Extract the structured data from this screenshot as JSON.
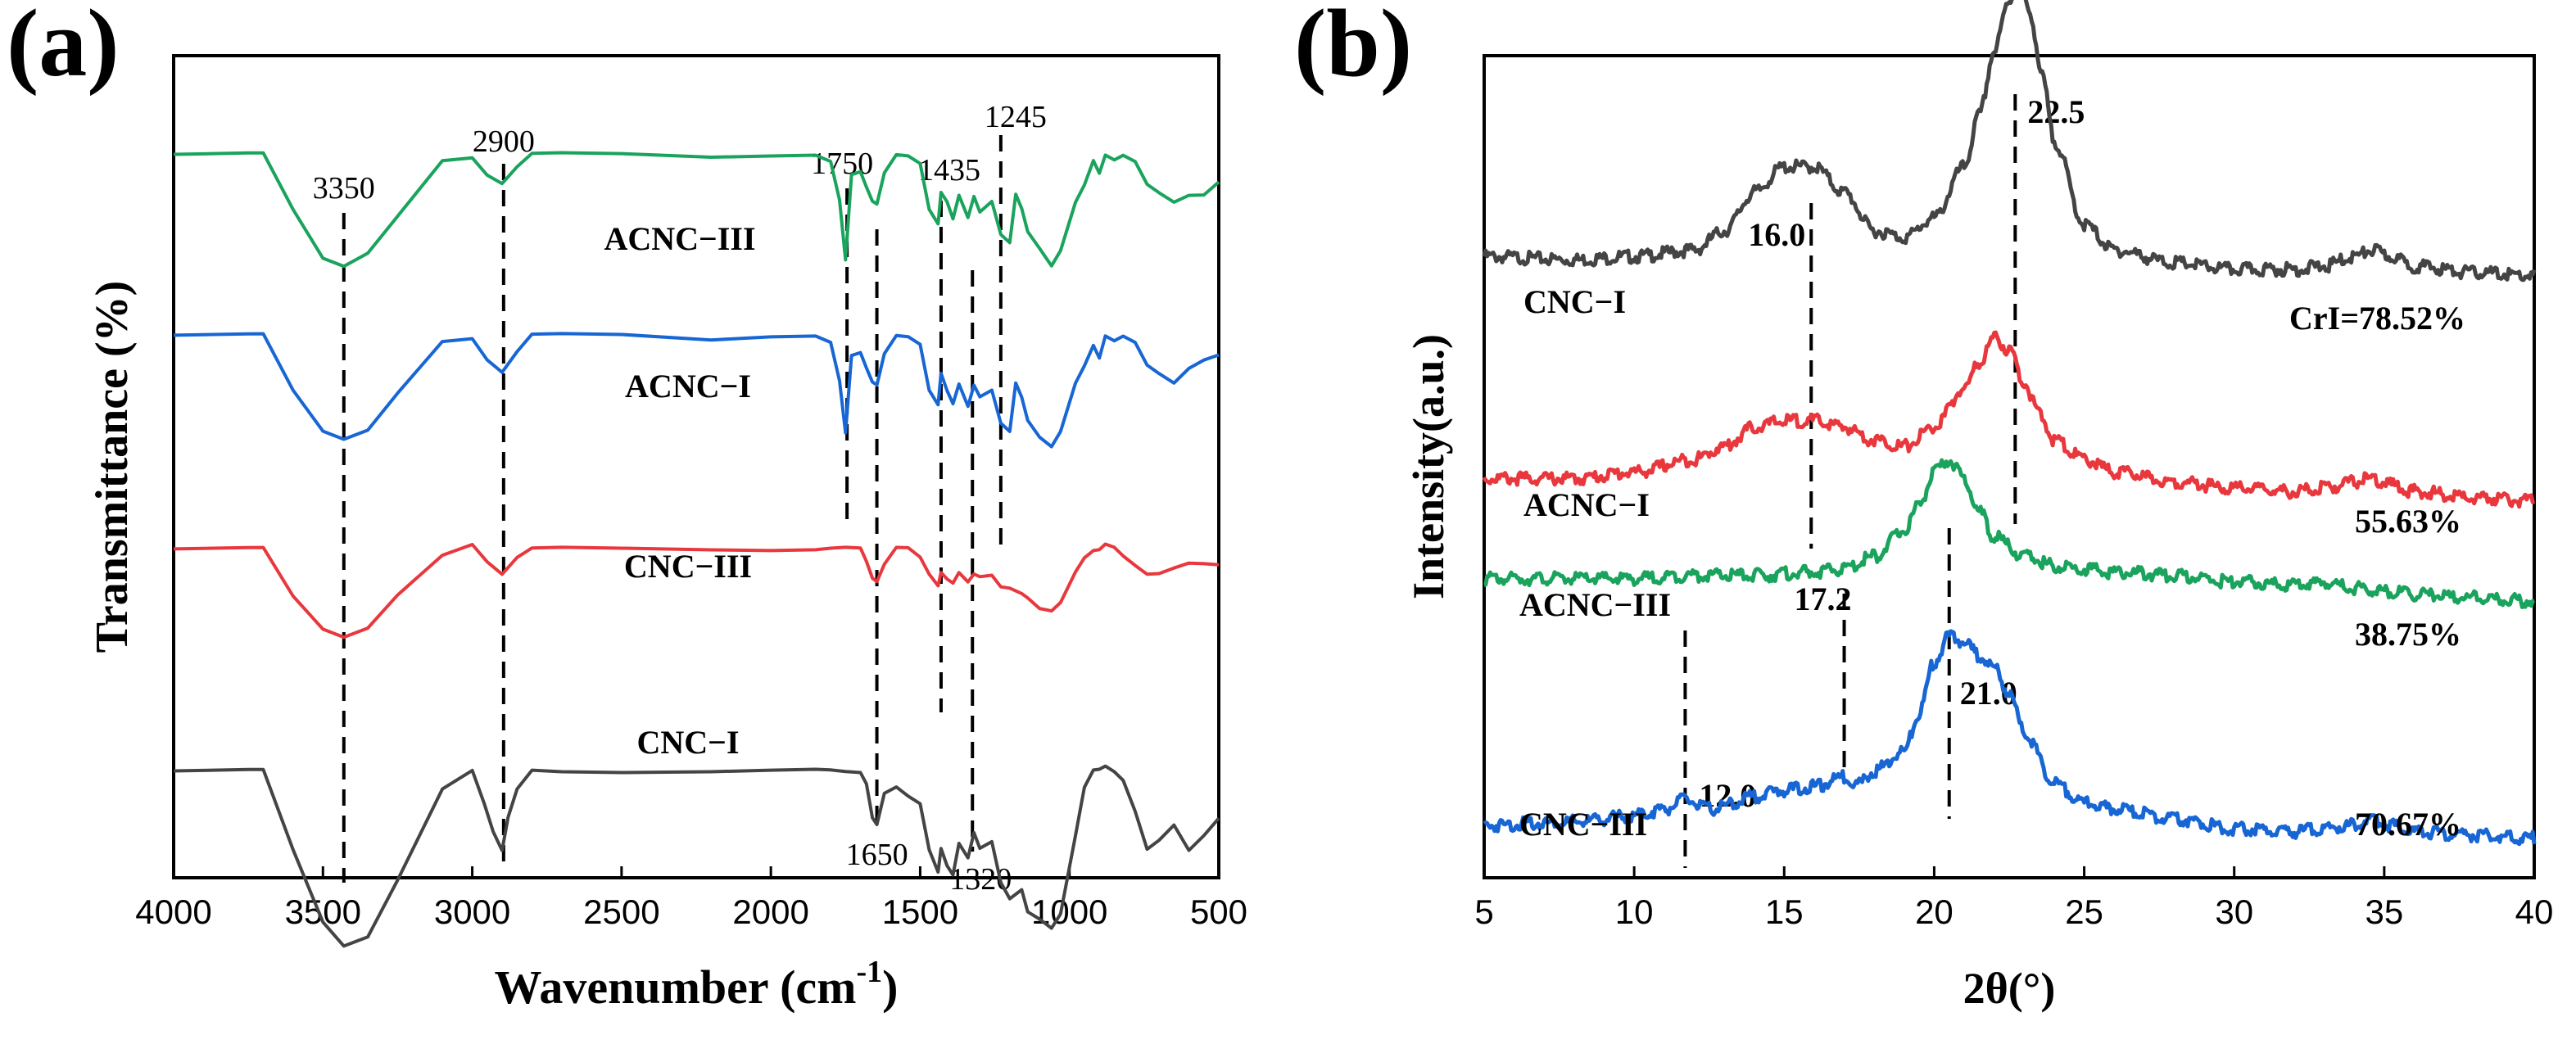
{
  "chart_data": [
    {
      "type": "line",
      "panel_label": "(a)",
      "xlabel": "Wavenumber (cm",
      "xlabel_sup": "-1",
      "xlabel_close": ")",
      "ylabel": "Transmittance (%)",
      "xlim": [
        4000,
        500
      ],
      "xticks": [
        "4000",
        "3500",
        "3000",
        "2500",
        "2000",
        "1500",
        "1000",
        "500"
      ],
      "peaks": [
        {
          "label": "3350",
          "x": 3430
        },
        {
          "label": "2900",
          "x": 2895
        },
        {
          "label": "1750",
          "x": 1745
        },
        {
          "label": "1650",
          "x": 1645
        },
        {
          "label": "1435",
          "x": 1430
        },
        {
          "label": "1320",
          "x": 1325
        },
        {
          "label": "1245",
          "x": 1230
        }
      ],
      "series": [
        {
          "name": "ACNC−III",
          "color": "#1aa35c",
          "offset": 0.88,
          "x": [
            4000,
            3750,
            3700,
            3600,
            3500,
            3430,
            3350,
            3250,
            3100,
            3000,
            2950,
            2900,
            2850,
            2800,
            2700,
            2500,
            2200,
            2000,
            1850,
            1800,
            1770,
            1750,
            1730,
            1700,
            1680,
            1660,
            1645,
            1620,
            1580,
            1540,
            1500,
            1470,
            1440,
            1430,
            1410,
            1390,
            1370,
            1340,
            1320,
            1300,
            1260,
            1230,
            1200,
            1180,
            1160,
            1140,
            1100,
            1060,
            1030,
            980,
            950,
            920,
            900,
            880,
            850,
            820,
            780,
            740,
            700,
            650,
            600,
            550,
            500
          ],
          "y": [
            0,
            0,
            0,
            -0.14,
            -0.26,
            -0.28,
            -0.25,
            -0.16,
            -0.02,
            -0.01,
            -0.05,
            -0.07,
            -0.03,
            0,
            0,
            0,
            -0.005,
            0,
            0,
            -0.02,
            -0.12,
            -0.27,
            -0.05,
            -0.04,
            -0.08,
            -0.12,
            -0.13,
            -0.05,
            0,
            0,
            -0.02,
            -0.14,
            -0.18,
            -0.1,
            -0.12,
            -0.16,
            -0.1,
            -0.16,
            -0.11,
            -0.15,
            -0.12,
            -0.2,
            -0.22,
            -0.1,
            -0.14,
            -0.2,
            -0.24,
            -0.28,
            -0.24,
            -0.12,
            -0.08,
            -0.02,
            -0.05,
            0,
            -0.01,
            0,
            -0.02,
            -0.08,
            -0.1,
            -0.12,
            -0.1,
            -0.1,
            -0.07
          ]
        },
        {
          "name": "ACNC−I",
          "color": "#1766d4",
          "offset": 0.66,
          "x": [
            4000,
            3750,
            3700,
            3600,
            3500,
            3430,
            3350,
            3250,
            3100,
            3000,
            2950,
            2900,
            2850,
            2800,
            2700,
            2500,
            2200,
            2000,
            1850,
            1800,
            1770,
            1750,
            1730,
            1700,
            1680,
            1660,
            1645,
            1620,
            1580,
            1540,
            1500,
            1470,
            1440,
            1430,
            1410,
            1390,
            1370,
            1340,
            1320,
            1300,
            1260,
            1230,
            1200,
            1180,
            1160,
            1140,
            1100,
            1060,
            1030,
            980,
            950,
            920,
            900,
            880,
            850,
            820,
            780,
            740,
            700,
            650,
            600,
            550,
            500
          ],
          "y": [
            0,
            0,
            0,
            -0.14,
            -0.24,
            -0.26,
            -0.24,
            -0.15,
            -0.02,
            -0.01,
            -0.06,
            -0.09,
            -0.04,
            0,
            0,
            0,
            -0.01,
            0,
            0,
            -0.02,
            -0.12,
            -0.25,
            -0.05,
            -0.04,
            -0.08,
            -0.12,
            -0.13,
            -0.05,
            0,
            0,
            -0.02,
            -0.14,
            -0.18,
            -0.1,
            -0.14,
            -0.17,
            -0.12,
            -0.18,
            -0.13,
            -0.16,
            -0.14,
            -0.22,
            -0.24,
            -0.12,
            -0.16,
            -0.22,
            -0.26,
            -0.28,
            -0.24,
            -0.12,
            -0.08,
            -0.03,
            -0.06,
            0,
            -0.01,
            0,
            -0.02,
            -0.08,
            -0.1,
            -0.12,
            -0.08,
            -0.06,
            -0.05
          ]
        },
        {
          "name": "CNC−III",
          "color": "#e8383d",
          "offset": 0.4,
          "x": [
            4000,
            3750,
            3700,
            3600,
            3500,
            3430,
            3350,
            3250,
            3100,
            3000,
            2950,
            2900,
            2850,
            2800,
            2700,
            2500,
            2200,
            2000,
            1850,
            1800,
            1750,
            1700,
            1680,
            1660,
            1645,
            1620,
            1580,
            1540,
            1500,
            1470,
            1440,
            1430,
            1410,
            1390,
            1370,
            1340,
            1320,
            1300,
            1260,
            1230,
            1200,
            1160,
            1140,
            1100,
            1060,
            1030,
            980,
            950,
            920,
            900,
            880,
            850,
            820,
            780,
            740,
            700,
            650,
            600,
            550,
            500
          ],
          "y": [
            0,
            0,
            0,
            -0.12,
            -0.2,
            -0.22,
            -0.2,
            -0.12,
            -0.02,
            0.01,
            -0.03,
            -0.06,
            -0.02,
            0,
            0,
            0,
            0,
            0,
            0,
            0,
            0,
            0,
            -0.03,
            -0.07,
            -0.08,
            -0.04,
            0,
            0,
            -0.02,
            -0.06,
            -0.09,
            -0.06,
            -0.08,
            -0.09,
            -0.06,
            -0.08,
            -0.06,
            -0.07,
            -0.07,
            -0.1,
            -0.1,
            -0.11,
            -0.12,
            -0.15,
            -0.16,
            -0.14,
            -0.06,
            -0.02,
            0,
            0,
            0.01,
            0,
            -0.02,
            -0.04,
            -0.06,
            -0.06,
            -0.05,
            -0.04,
            -0.04,
            -0.04
          ]
        },
        {
          "name": "CNC−I",
          "color": "#444444",
          "offset": 0.13,
          "x": [
            4000,
            3750,
            3700,
            3600,
            3500,
            3430,
            3350,
            3250,
            3100,
            3000,
            2960,
            2930,
            2900,
            2880,
            2850,
            2800,
            2700,
            2500,
            2200,
            2000,
            1850,
            1800,
            1750,
            1700,
            1680,
            1660,
            1645,
            1620,
            1580,
            1540,
            1500,
            1470,
            1440,
            1430,
            1410,
            1390,
            1370,
            1340,
            1320,
            1300,
            1260,
            1230,
            1200,
            1160,
            1140,
            1100,
            1060,
            1030,
            980,
            950,
            920,
            900,
            880,
            850,
            820,
            780,
            740,
            700,
            650,
            600,
            550,
            500
          ],
          "y": [
            0,
            0,
            0,
            -0.2,
            -0.38,
            -0.44,
            -0.42,
            -0.28,
            -0.05,
            0,
            -0.08,
            -0.15,
            -0.2,
            -0.12,
            -0.05,
            0,
            0,
            0,
            0,
            0,
            0,
            0,
            0,
            0,
            -0.03,
            -0.12,
            -0.14,
            -0.06,
            -0.04,
            -0.06,
            -0.08,
            -0.2,
            -0.26,
            -0.2,
            -0.24,
            -0.26,
            -0.18,
            -0.22,
            -0.16,
            -0.2,
            -0.18,
            -0.28,
            -0.32,
            -0.3,
            -0.36,
            -0.38,
            -0.4,
            -0.36,
            -0.16,
            -0.04,
            0,
            0,
            0.01,
            0,
            -0.02,
            -0.1,
            -0.2,
            -0.18,
            -0.14,
            -0.2,
            -0.16,
            -0.12
          ]
        }
      ]
    },
    {
      "type": "line",
      "panel_label": "(b)",
      "xlabel": "2θ(°)",
      "ylabel": "Intensity(a.u.)",
      "xlim": [
        5,
        40
      ],
      "xticks": [
        "5",
        "10",
        "15",
        "20",
        "25",
        "30",
        "35",
        "40"
      ],
      "peaks": [
        {
          "label": "16.0",
          "x": 15.9
        },
        {
          "label": "22.5",
          "x": 22.7
        },
        {
          "label": "17.2",
          "x": 17.0
        },
        {
          "label": "21.0",
          "x": 20.5
        },
        {
          "label": "12.0",
          "x": 11.7
        }
      ],
      "series": [
        {
          "name": "CNC−I",
          "color": "#444444",
          "crI": "CrI=78.52%",
          "offset": 0.74,
          "x": [
            5,
            8,
            10,
            12,
            13,
            14,
            15,
            16,
            17,
            18,
            19,
            20,
            21,
            21.5,
            22,
            22.5,
            22.8,
            23.2,
            23.6,
            24,
            25,
            26,
            28,
            30,
            32,
            33,
            34,
            34.6,
            35.2,
            36,
            38,
            40
          ],
          "y": [
            0.02,
            0.015,
            0.02,
            0.03,
            0.06,
            0.12,
            0.16,
            0.16,
            0.12,
            0.06,
            0.05,
            0.08,
            0.16,
            0.24,
            0.34,
            0.42,
            0.44,
            0.4,
            0.3,
            0.2,
            0.07,
            0.03,
            0.01,
            0,
            0,
            0.005,
            0.02,
            0.03,
            0.02,
            0.005,
            -0.005,
            -0.01
          ]
        },
        {
          "name": "ACNC−I",
          "color": "#e8383d",
          "crI": "55.63%",
          "offset": 0.47,
          "x": [
            5,
            8,
            10,
            12,
            13,
            14,
            15,
            16,
            17,
            18,
            19,
            20,
            21,
            21.5,
            22,
            22.5,
            23,
            23.5,
            24,
            25,
            26,
            28,
            30,
            32,
            33,
            34,
            34.6,
            35.2,
            36,
            38,
            40
          ],
          "y": [
            0.02,
            0.02,
            0.03,
            0.05,
            0.07,
            0.1,
            0.11,
            0.11,
            0.1,
            0.08,
            0.07,
            0.1,
            0.16,
            0.2,
            0.24,
            0.22,
            0.17,
            0.12,
            0.08,
            0.05,
            0.03,
            0.015,
            0.005,
            0,
            0.005,
            0.015,
            0.02,
            0.01,
            0,
            -0.01,
            -0.015
          ]
        },
        {
          "name": "ACNC−III",
          "color": "#1aa35c",
          "crI": "38.75%",
          "offset": 0.36,
          "x": [
            5,
            8,
            10,
            12,
            14,
            16,
            17,
            18,
            19,
            19.5,
            20,
            20.5,
            21,
            21.5,
            22,
            23,
            24,
            25,
            26,
            28,
            30,
            32,
            33,
            34,
            35,
            36,
            38,
            40
          ],
          "y": [
            0.005,
            0.005,
            0.005,
            0.01,
            0.01,
            0.015,
            0.02,
            0.04,
            0.08,
            0.12,
            0.17,
            0.19,
            0.16,
            0.11,
            0.07,
            0.04,
            0.025,
            0.02,
            0.015,
            0.01,
            0,
            -0.005,
            0,
            -0.01,
            -0.015,
            -0.02,
            -0.025,
            -0.03
          ]
        },
        {
          "name": "CNC−III",
          "color": "#1766d4",
          "crI": "70.67%",
          "offset": 0.06,
          "x": [
            5,
            8,
            10,
            11,
            11.7,
            12.5,
            13,
            14,
            15,
            16,
            17,
            17.5,
            18,
            19,
            19.5,
            20,
            20.5,
            21,
            21.5,
            22,
            22.5,
            23,
            24,
            25,
            26,
            28,
            30,
            32,
            33,
            34,
            34.6,
            35.2,
            36,
            38,
            40
          ],
          "y": [
            0.005,
            0.01,
            0.02,
            0.03,
            0.045,
            0.03,
            0.035,
            0.05,
            0.06,
            0.065,
            0.08,
            0.07,
            0.09,
            0.12,
            0.18,
            0.26,
            0.3,
            0.29,
            0.27,
            0.25,
            0.21,
            0.15,
            0.07,
            0.04,
            0.03,
            0.015,
            0,
            -0.005,
            0,
            0.005,
            0.015,
            0.005,
            -0.005,
            -0.01,
            -0.015
          ]
        }
      ]
    }
  ]
}
